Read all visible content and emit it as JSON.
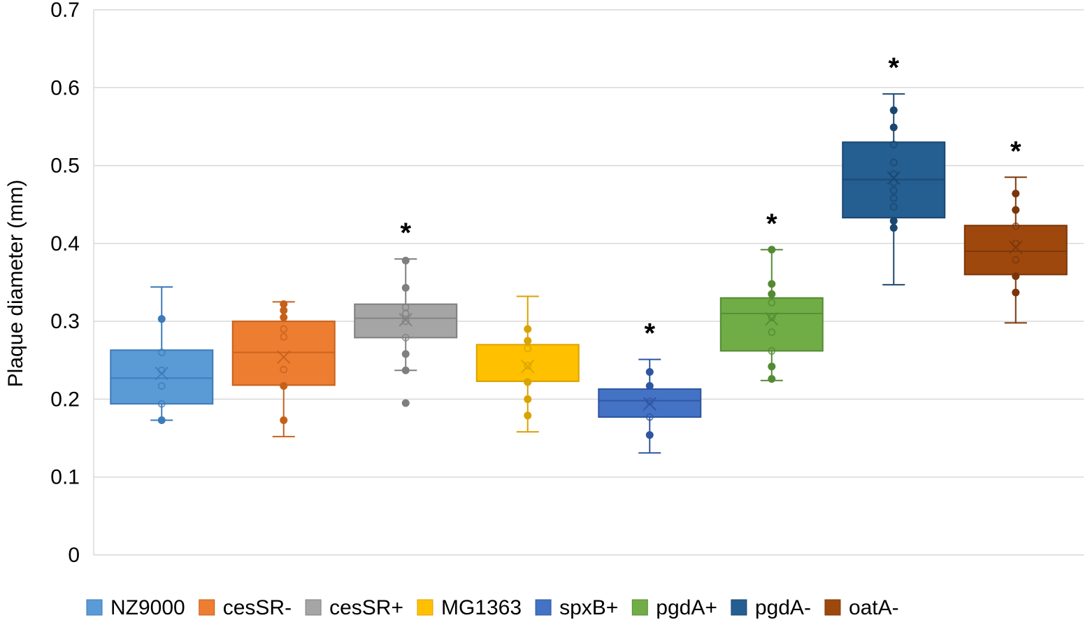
{
  "chart_data": {
    "type": "box",
    "title": "",
    "xlabel": "",
    "ylabel": "Plaque diameter (mm)",
    "ylim": [
      0,
      0.7
    ],
    "yticks": [
      "0",
      "0.1",
      "0.2",
      "0.3",
      "0.4",
      "0.5",
      "0.6",
      "0.7"
    ],
    "grid": true,
    "legend_position": "bottom",
    "series": [
      {
        "name": "NZ9000",
        "color": "#5b9bd5",
        "stroke": "#3d7ab8",
        "min": 0.173,
        "q1": 0.194,
        "median": 0.227,
        "mean": 0.233,
        "q3": 0.263,
        "max": 0.344,
        "points": [
          0.173,
          0.194,
          0.217,
          0.237,
          0.26,
          0.303
        ],
        "significant": ""
      },
      {
        "name": "cesSR-",
        "color": "#ed7d31",
        "stroke": "#c5601b",
        "min": 0.152,
        "q1": 0.218,
        "median": 0.26,
        "mean": 0.254,
        "q3": 0.3,
        "max": 0.325,
        "points": [
          0.173,
          0.217,
          0.238,
          0.28,
          0.29,
          0.305,
          0.314,
          0.322
        ],
        "significant": ""
      },
      {
        "name": "cesSR+",
        "color": "#a5a5a5",
        "stroke": "#7f7f7f",
        "min": 0.237,
        "q1": 0.279,
        "median": 0.304,
        "mean": 0.302,
        "q3": 0.322,
        "max": 0.38,
        "points": [
          0.195,
          0.237,
          0.258,
          0.279,
          0.3,
          0.31,
          0.318,
          0.343,
          0.378
        ],
        "significant": "*"
      },
      {
        "name": "MG1363",
        "color": "#ffc000",
        "stroke": "#d9a300",
        "min": 0.158,
        "q1": 0.223,
        "median": 0.223,
        "mean": 0.242,
        "q3": 0.27,
        "max": 0.332,
        "points": [
          0.179,
          0.2,
          0.222,
          0.243,
          0.265,
          0.275,
          0.29
        ],
        "significant": ""
      },
      {
        "name": "spxB+",
        "color": "#4472c4",
        "stroke": "#2f55a0",
        "min": 0.131,
        "q1": 0.177,
        "median": 0.198,
        "mean": 0.194,
        "q3": 0.213,
        "max": 0.251,
        "points": [
          0.154,
          0.177,
          0.197,
          0.217,
          0.235
        ],
        "significant": "*"
      },
      {
        "name": "pgdA+",
        "color": "#70ad47",
        "stroke": "#548a32",
        "min": 0.224,
        "q1": 0.262,
        "median": 0.31,
        "mean": 0.303,
        "q3": 0.33,
        "max": 0.392,
        "points": [
          0.226,
          0.242,
          0.262,
          0.286,
          0.305,
          0.324,
          0.335,
          0.348,
          0.392
        ],
        "significant": "*"
      },
      {
        "name": "pgdA-",
        "color": "#255e91",
        "stroke": "#1a4770",
        "min": 0.347,
        "q1": 0.433,
        "median": 0.482,
        "mean": 0.484,
        "q3": 0.53,
        "max": 0.592,
        "points": [
          0.42,
          0.429,
          0.447,
          0.458,
          0.468,
          0.478,
          0.489,
          0.504,
          0.527,
          0.549,
          0.571
        ],
        "significant": "*"
      },
      {
        "name": "oatA-",
        "color": "#9e480e",
        "stroke": "#7a360a",
        "min": 0.298,
        "q1": 0.36,
        "median": 0.39,
        "mean": 0.395,
        "q3": 0.423,
        "max": 0.485,
        "points": [
          0.337,
          0.358,
          0.379,
          0.4,
          0.422,
          0.443,
          0.464
        ],
        "significant": "*"
      }
    ]
  }
}
